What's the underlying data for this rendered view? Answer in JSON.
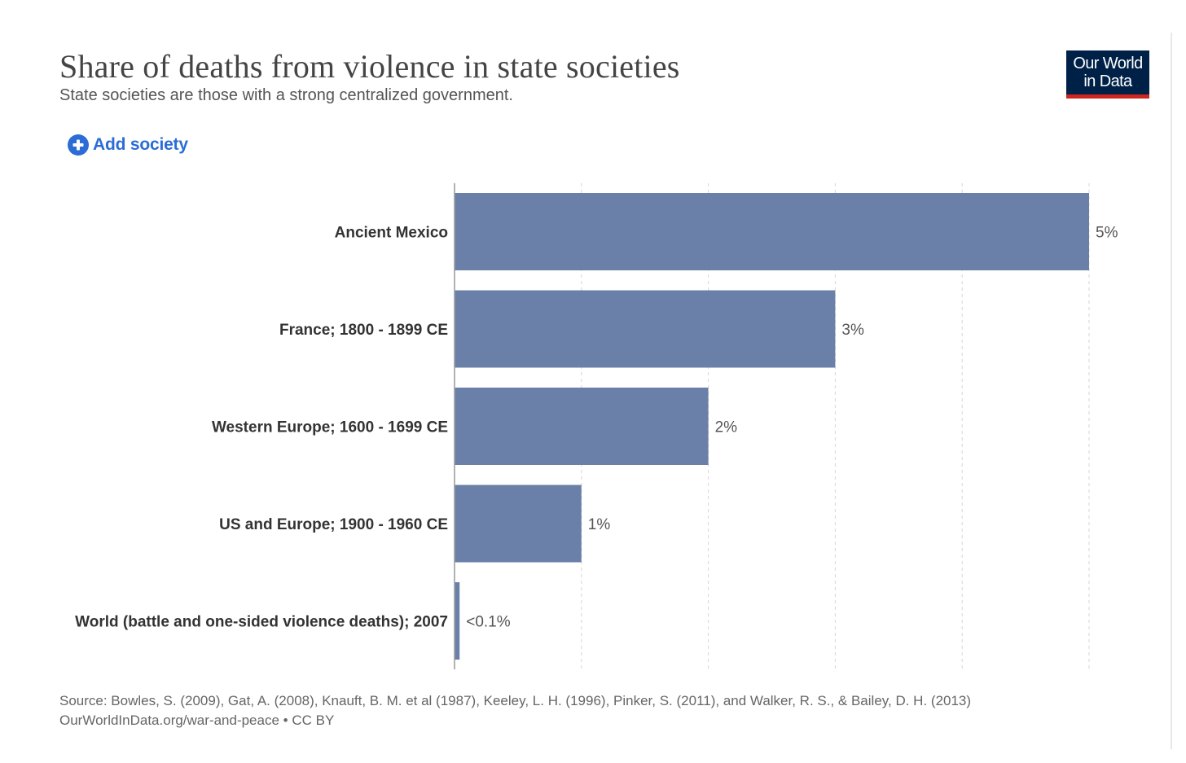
{
  "header": {
    "title": "Share of deaths from violence in state societies",
    "subtitle": "State societies are those with a strong centralized government."
  },
  "logo": {
    "line1": "Our World",
    "line2": "in Data"
  },
  "controls": {
    "add_label": "Add society",
    "add_icon": "plus-circle-icon"
  },
  "footer": {
    "source": "Source: Bowles, S. (2009), Gat, A. (2008), Knauft, B. M. et al (1987), Keeley, L. H. (1996), Pinker, S. (2011), and Walker, R. S., & Bailey, D. H. (2013)",
    "license": "OurWorldInData.org/war-and-peace • CC BY"
  },
  "colors": {
    "bar": "#6b80a8",
    "accent": "#2b6cd6",
    "logo_bg": "#002147",
    "logo_stripe": "#ce261e"
  },
  "chart_data": {
    "type": "bar",
    "orientation": "horizontal",
    "title": "Share of deaths from violence in state societies",
    "categories": [
      "Ancient Mexico",
      "France; 1800 - 1899 CE",
      "Western Europe; 1600 - 1699 CE",
      "US and Europe; 1900 - 1960 CE",
      "World (battle and one-sided violence deaths); 2007"
    ],
    "values": [
      5,
      3,
      2,
      1,
      0.04
    ],
    "value_labels": [
      "5%",
      "3%",
      "2%",
      "1%",
      "<0.1%"
    ],
    "xlim": [
      0,
      5
    ],
    "grid_ticks": [
      1,
      2,
      3,
      4,
      5
    ],
    "xlabel": "",
    "ylabel": "",
    "grid": true
  }
}
